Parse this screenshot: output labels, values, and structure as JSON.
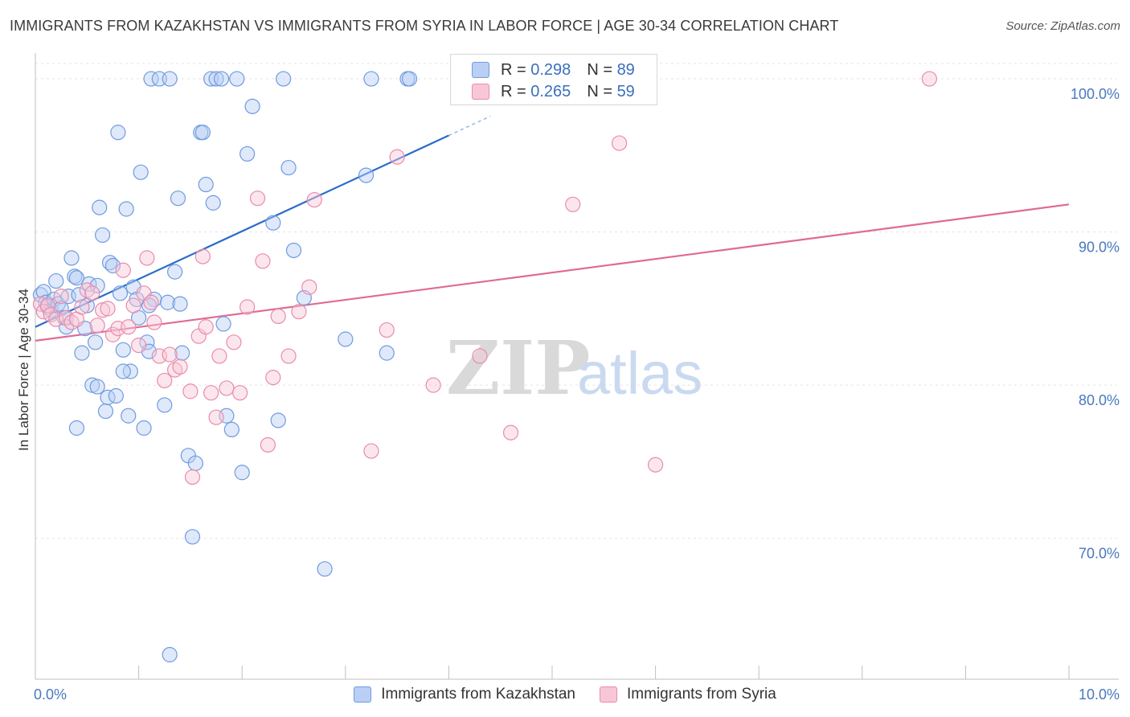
{
  "title": "IMMIGRANTS FROM KAZAKHSTAN VS IMMIGRANTS FROM SYRIA IN LABOR FORCE | AGE 30-34 CORRELATION CHART",
  "source": "Source: ZipAtlas.com",
  "watermark": {
    "zip": "ZIP",
    "atlas": "atlas"
  },
  "legend": {
    "r_label": "R =",
    "n_label": "N =",
    "series": [
      {
        "r": "0.298",
        "n": "89"
      },
      {
        "r": "0.265",
        "n": "59"
      }
    ]
  },
  "chart_data": {
    "type": "scatter",
    "title": "IMMIGRANTS FROM KAZAKHSTAN VS IMMIGRANTS FROM SYRIA IN LABOR FORCE | AGE 30-34 CORRELATION CHART",
    "xlabel": "",
    "ylabel": "In Labor Force | Age 30-34",
    "xlim": [
      0,
      10
    ],
    "ylim": [
      60.8,
      101.0
    ],
    "x_tick_labels": [
      "0.0%",
      "10.0%"
    ],
    "y_ticks": [
      70,
      80,
      90,
      100
    ],
    "y_tick_labels": [
      "70.0%",
      "80.0%",
      "90.0%",
      "100.0%"
    ],
    "legend_position": "bottom",
    "series": [
      {
        "name": "Immigrants from Kazakhstan",
        "color": "#6f9be0",
        "fill": "#b9cff4",
        "line_color": "#2a6cc8",
        "trend": {
          "x0": 0.0,
          "y0": 83.8,
          "x1": 4.0,
          "y1": 96.3,
          "dash_to_x": 4.4
        },
        "points": [
          [
            0.05,
            85.9
          ],
          [
            0.08,
            86.1
          ],
          [
            0.1,
            85.4
          ],
          [
            0.12,
            85.1
          ],
          [
            0.15,
            84.9
          ],
          [
            0.18,
            85.6
          ],
          [
            0.2,
            86.8
          ],
          [
            0.22,
            85.3
          ],
          [
            0.25,
            85.0
          ],
          [
            0.28,
            84.4
          ],
          [
            0.3,
            83.8
          ],
          [
            0.32,
            85.8
          ],
          [
            0.35,
            88.3
          ],
          [
            0.38,
            87.1
          ],
          [
            0.4,
            87.0
          ],
          [
            0.42,
            85.9
          ],
          [
            0.45,
            82.1
          ],
          [
            0.48,
            83.7
          ],
          [
            0.5,
            85.2
          ],
          [
            0.52,
            86.6
          ],
          [
            0.55,
            80.0
          ],
          [
            0.58,
            82.8
          ],
          [
            0.6,
            79.9
          ],
          [
            0.62,
            91.6
          ],
          [
            0.65,
            89.8
          ],
          [
            0.68,
            78.3
          ],
          [
            0.7,
            79.2
          ],
          [
            0.72,
            88.0
          ],
          [
            0.75,
            87.8
          ],
          [
            0.78,
            79.3
          ],
          [
            0.8,
            96.5
          ],
          [
            0.82,
            86.0
          ],
          [
            0.85,
            82.3
          ],
          [
            0.88,
            91.5
          ],
          [
            0.9,
            78.0
          ],
          [
            0.92,
            80.9
          ],
          [
            0.95,
            86.4
          ],
          [
            0.98,
            85.6
          ],
          [
            1.0,
            84.4
          ],
          [
            1.02,
            93.9
          ],
          [
            1.05,
            77.2
          ],
          [
            1.08,
            82.8
          ],
          [
            1.1,
            82.2
          ],
          [
            1.12,
            100.0
          ],
          [
            1.15,
            85.6
          ],
          [
            1.2,
            100.0
          ],
          [
            1.25,
            78.7
          ],
          [
            1.28,
            85.4
          ],
          [
            1.3,
            100.0
          ],
          [
            1.35,
            87.4
          ],
          [
            1.38,
            92.2
          ],
          [
            1.4,
            85.3
          ],
          [
            1.42,
            82.1
          ],
          [
            1.48,
            75.4
          ],
          [
            1.52,
            70.1
          ],
          [
            1.55,
            74.9
          ],
          [
            1.6,
            96.5
          ],
          [
            1.62,
            96.5
          ],
          [
            1.65,
            93.1
          ],
          [
            1.7,
            100.0
          ],
          [
            1.72,
            91.9
          ],
          [
            1.75,
            100.0
          ],
          [
            1.8,
            100.0
          ],
          [
            1.82,
            84.0
          ],
          [
            1.85,
            78.0
          ],
          [
            1.9,
            77.1
          ],
          [
            1.95,
            100.0
          ],
          [
            2.0,
            74.3
          ],
          [
            2.05,
            95.1
          ],
          [
            2.1,
            98.2
          ],
          [
            2.3,
            90.6
          ],
          [
            2.35,
            77.7
          ],
          [
            2.4,
            100.0
          ],
          [
            2.45,
            94.2
          ],
          [
            2.5,
            88.8
          ],
          [
            2.6,
            85.7
          ],
          [
            2.8,
            68.0
          ],
          [
            3.0,
            83.0
          ],
          [
            3.2,
            93.7
          ],
          [
            3.25,
            100.0
          ],
          [
            3.4,
            82.1
          ],
          [
            3.6,
            100.0
          ],
          [
            3.62,
            100.0
          ],
          [
            4.1,
            100.0
          ],
          [
            1.3,
            62.4
          ],
          [
            0.4,
            77.2
          ],
          [
            0.6,
            86.5
          ],
          [
            0.85,
            80.9
          ],
          [
            1.1,
            85.2
          ]
        ]
      },
      {
        "name": "Immigrants from Syria",
        "color": "#e98bab",
        "fill": "#f8c7d6",
        "line_color": "#e06a92",
        "trend": {
          "x0": 0.0,
          "y0": 82.9,
          "x1": 10.0,
          "y1": 91.8
        },
        "points": [
          [
            0.05,
            85.3
          ],
          [
            0.08,
            84.8
          ],
          [
            0.12,
            85.2
          ],
          [
            0.15,
            84.6
          ],
          [
            0.2,
            84.3
          ],
          [
            0.25,
            85.8
          ],
          [
            0.3,
            84.4
          ],
          [
            0.35,
            84.1
          ],
          [
            0.4,
            84.3
          ],
          [
            0.45,
            85.1
          ],
          [
            0.5,
            86.2
          ],
          [
            0.55,
            86.0
          ],
          [
            0.6,
            83.9
          ],
          [
            0.65,
            84.9
          ],
          [
            0.7,
            85.0
          ],
          [
            0.75,
            83.3
          ],
          [
            0.8,
            83.7
          ],
          [
            0.85,
            87.5
          ],
          [
            0.9,
            83.8
          ],
          [
            0.95,
            85.2
          ],
          [
            1.0,
            82.6
          ],
          [
            1.05,
            86.0
          ],
          [
            1.08,
            88.3
          ],
          [
            1.12,
            85.4
          ],
          [
            1.15,
            84.1
          ],
          [
            1.2,
            81.9
          ],
          [
            1.25,
            80.3
          ],
          [
            1.3,
            82.0
          ],
          [
            1.35,
            81.0
          ],
          [
            1.4,
            81.2
          ],
          [
            1.5,
            79.6
          ],
          [
            1.52,
            74.0
          ],
          [
            1.58,
            83.2
          ],
          [
            1.62,
            88.4
          ],
          [
            1.65,
            83.8
          ],
          [
            1.7,
            79.5
          ],
          [
            1.75,
            77.9
          ],
          [
            1.78,
            81.9
          ],
          [
            1.85,
            79.8
          ],
          [
            1.92,
            82.8
          ],
          [
            1.98,
            79.5
          ],
          [
            2.05,
            85.1
          ],
          [
            2.15,
            92.2
          ],
          [
            2.2,
            88.1
          ],
          [
            2.25,
            76.1
          ],
          [
            2.3,
            80.5
          ],
          [
            2.35,
            84.5
          ],
          [
            2.45,
            81.9
          ],
          [
            2.55,
            84.8
          ],
          [
            2.65,
            86.4
          ],
          [
            2.7,
            92.1
          ],
          [
            3.25,
            75.7
          ],
          [
            3.4,
            83.6
          ],
          [
            3.5,
            94.9
          ],
          [
            3.85,
            80.0
          ],
          [
            4.3,
            81.9
          ],
          [
            4.6,
            76.9
          ],
          [
            5.2,
            91.8
          ],
          [
            5.65,
            95.8
          ],
          [
            6.0,
            74.8
          ],
          [
            8.65,
            100.0
          ]
        ]
      }
    ]
  }
}
